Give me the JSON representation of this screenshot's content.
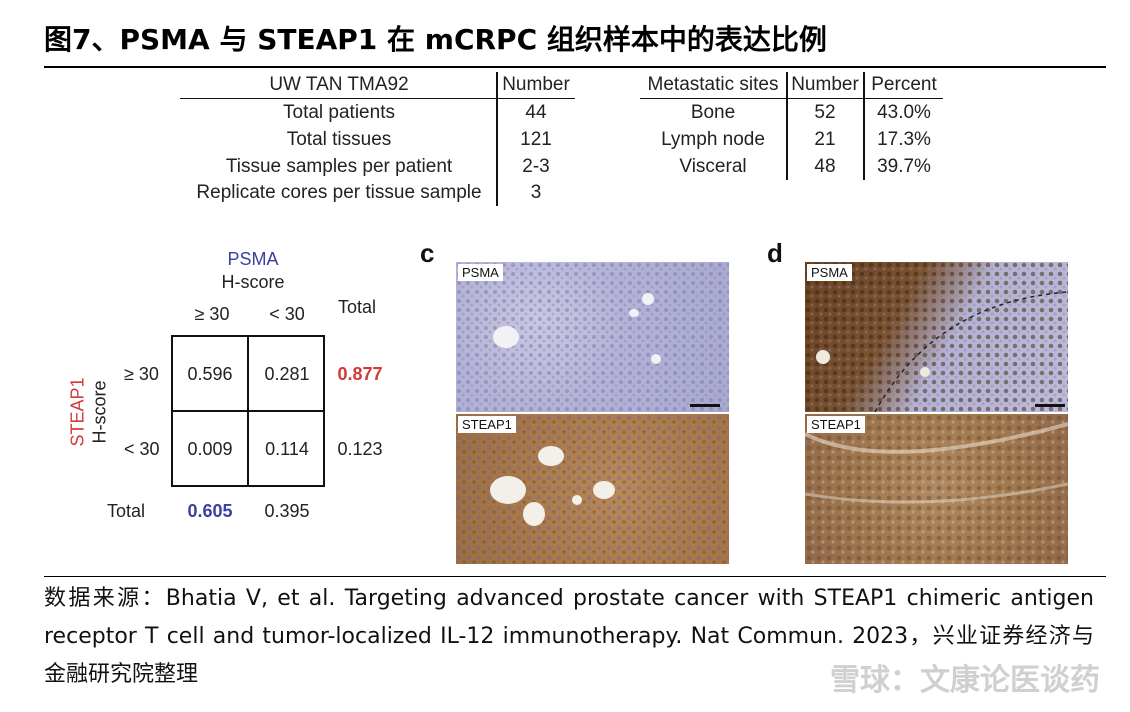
{
  "title": "图7、PSMA 与 STEAP1 在 mCRPC 组织样本中的表达比例",
  "table1": {
    "header": [
      "UW TAN TMA92",
      "Number"
    ],
    "rows": [
      [
        "Total patients",
        "44"
      ],
      [
        "Total tissues",
        "121"
      ],
      [
        "Tissue samples per patient",
        "2-3"
      ],
      [
        "Replicate cores per tissue sample",
        "3"
      ]
    ]
  },
  "table2": {
    "header": [
      "Metastatic sites",
      "Number",
      "Percent"
    ],
    "rows": [
      [
        "Bone",
        "52",
        "43.0%"
      ],
      [
        "Lymph node",
        "21",
        "17.3%"
      ],
      [
        "Visceral",
        "48",
        "39.7%"
      ]
    ]
  },
  "contingency": {
    "col_title": "PSMA",
    "col_subtitle": "H-score",
    "row_title": "STEAP1",
    "row_subtitle": "H-score",
    "col_headers": [
      "≥ 30",
      "< 30",
      "Total"
    ],
    "row_headers": [
      "≥ 30",
      "< 30",
      "Total"
    ],
    "cells": [
      [
        "0.596",
        "0.281"
      ],
      [
        "0.009",
        "0.114"
      ]
    ],
    "row_totals": [
      "0.877",
      "0.123"
    ],
    "col_totals": [
      "0.605",
      "0.395"
    ],
    "colors": {
      "psma": "#3b3f9e",
      "steap1": "#d03a3a"
    }
  },
  "panels": {
    "c": {
      "letter": "c",
      "top_label": "PSMA",
      "bottom_label": "STEAP1"
    },
    "d": {
      "letter": "d",
      "top_label": "PSMA",
      "bottom_label": "STEAP1"
    }
  },
  "source": "数据来源：Bhatia V, et al. Targeting advanced prostate cancer with STEAP1 chimeric antigen receptor T cell and tumor-localized IL-12 immunotherapy. Nat Commun. 2023，兴业证券经济与金融研究院整理",
  "watermark": "雪球：文康论医谈药"
}
